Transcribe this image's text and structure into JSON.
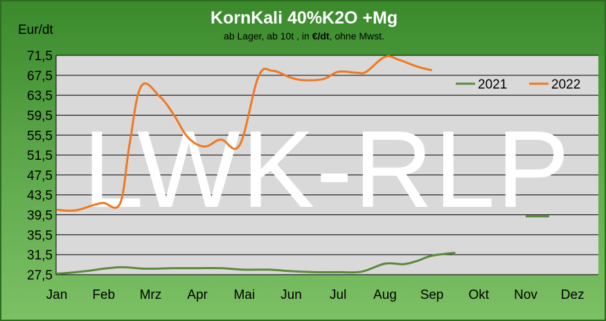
{
  "chart_data": {
    "type": "line",
    "title": "KornKali 40%K2O +Mg",
    "subtitle_parts": [
      "ab Lager, ab 10t ,  in ",
      "€/dt",
      ", ohne Mwst."
    ],
    "ylabel": "Eur/dt",
    "ylim": [
      27.5,
      71.5
    ],
    "yticks": [
      "27,5",
      "31,5",
      "35,5",
      "39,5",
      "43,5",
      "47,5",
      "51,5",
      "55,5",
      "59,5",
      "63,5",
      "67,5",
      "71,5"
    ],
    "categories": [
      "Jan",
      "Feb",
      "Mrz",
      "Apr",
      "Mai",
      "Jun",
      "Jul",
      "Aug",
      "Sep",
      "Okt",
      "Nov",
      "Dez"
    ],
    "watermark": "LWK-RLP",
    "grid": true,
    "legend_position": "top-right",
    "series": [
      {
        "name": "2021",
        "color": "#5a8a3a",
        "x": [
          1.0,
          1.3,
          1.7,
          2.0,
          2.4,
          2.9,
          3.5,
          4.0,
          4.5,
          5.0,
          5.5,
          6.0,
          6.5,
          7.0,
          7.5,
          8.0,
          8.4,
          8.7,
          9.0,
          9.5
        ],
        "values": [
          27.7,
          27.9,
          28.3,
          28.7,
          29.0,
          28.7,
          28.8,
          28.8,
          28.8,
          28.5,
          28.5,
          28.2,
          28.0,
          28.0,
          28.1,
          29.7,
          29.6,
          30.3,
          31.3,
          31.9
        ]
      },
      {
        "name": "2022",
        "color": "#f07820",
        "x": [
          1.0,
          1.4,
          1.8,
          2.0,
          2.35,
          2.55,
          2.8,
          3.2,
          3.5,
          3.8,
          4.15,
          4.5,
          4.9,
          5.3,
          5.6,
          6.0,
          6.3,
          6.7,
          7.0,
          7.4,
          7.6,
          8.0,
          8.3,
          8.7,
          9.0
        ],
        "values": [
          40.5,
          40.4,
          41.5,
          41.9,
          41.8,
          53.5,
          65.3,
          63.2,
          59.5,
          55.0,
          53.2,
          54.6,
          53.5,
          67.2,
          68.4,
          67.0,
          66.5,
          66.8,
          68.2,
          68.0,
          68.2,
          71.2,
          70.6,
          69.2,
          68.5
        ]
      },
      {
        "name": "",
        "color": "#5a8a3a",
        "x": [
          11.0,
          11.5
        ],
        "values": [
          39.2,
          39.2
        ]
      }
    ]
  }
}
